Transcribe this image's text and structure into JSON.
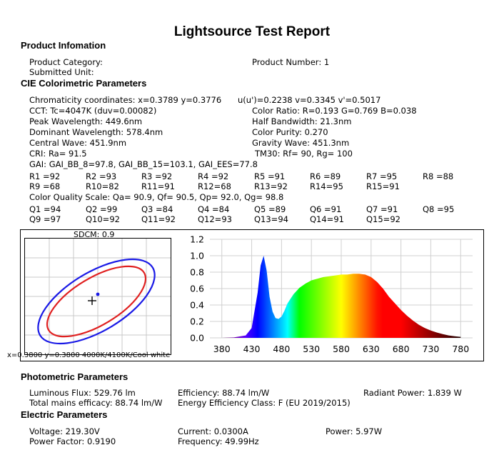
{
  "title": "Lightsource Test Report",
  "product": {
    "heading": "Product Infomation",
    "category": "Product Category:",
    "submitted": "Submitted Unit:",
    "number": "Product Number: 1"
  },
  "cie": {
    "heading": "CIE Colorimetric Parameters",
    "chroma": "Chromaticity coordinates: x=0.3789  y=0.3776",
    "uv": "u(u')=0.2238  v=0.3345  v'=0.5017",
    "cct": "CCT:  Tc=4047K (duv=0.00082)",
    "ratio": "Color Ratio:  R=0.193  G=0.769  B=0.038",
    "peak": "Peak Wavelength: 449.6nm",
    "half": "Half Bandwidth: 21.3nm",
    "dominant": "Dominant Wavelength: 578.4nm",
    "purity": "Color Purity: 0.270",
    "central": "Central Wave: 451.9nm",
    "gravity": "Gravity Wave: 451.3nm",
    "cri": "CRI:  Ra= 91.5",
    "tm30": "TM30: Rf=   90, Rg=  100",
    "gai": "GAI: GAI_BB_8=97.8, GAI_BB_15=103.1, GAI_EES=77.8",
    "r_row1": [
      "R1 =92",
      "R2 =93",
      "R3 =92",
      "R4 =92",
      "R5 =91",
      "R6 =89",
      "R7 =95",
      "R8 =88"
    ],
    "r_row2": [
      "R9 =68",
      "R10=82",
      "R11=91",
      "R12=68",
      "R13=92",
      "R14=95",
      "R15=91"
    ],
    "cqs": "Color Quality Scale: Qa= 90.9, Qf= 90.5, Qp= 92.0, Qg= 98.8",
    "q_row1": [
      "Q1 =94",
      "Q2 =99",
      "Q3 =84",
      "Q4 =84",
      "Q5 =89",
      "Q6 =91",
      "Q7 =91",
      "Q8 =95"
    ],
    "q_row2": [
      "Q9 =97",
      "Q10=92",
      "Q11=92",
      "Q12=93",
      "Q13=94",
      "Q14=91",
      "Q15=92"
    ]
  },
  "cie_plot": {
    "sdcm": "SDCM:   0.9",
    "bottom_label": "x=0.3800  y=0.3800  4000K/4100K/Cool white",
    "ellipse_colors": [
      "#e02020",
      "#1a1ae6"
    ]
  },
  "chart_data": {
    "type": "area",
    "xlabel": "",
    "ylabel": "",
    "xlim": [
      360,
      800
    ],
    "ylim": [
      0,
      1.2
    ],
    "x_ticks": [
      380,
      430,
      480,
      530,
      580,
      630,
      680,
      730,
      780
    ],
    "y_ticks": [
      0.0,
      0.2,
      0.4,
      0.6,
      0.8,
      1.0,
      1.2
    ],
    "x_tick_labels": [
      "380",
      "430",
      "480",
      "530",
      "580",
      "630",
      "680",
      "730",
      "780"
    ],
    "y_tick_labels": [
      "0.0",
      "0.2",
      "0.4",
      "0.6",
      "0.8",
      "1.0",
      "1.2"
    ],
    "grid": true,
    "fill": "visible-spectrum colors",
    "series": [
      {
        "x": [
          380,
          400,
          420,
          430,
          440,
          445,
          450,
          455,
          460,
          465,
          470,
          475,
          480,
          485,
          490,
          500,
          510,
          520,
          530,
          540,
          550,
          560,
          570,
          580,
          590,
          600,
          610,
          620,
          630,
          640,
          650,
          660,
          670,
          680,
          690,
          700,
          710,
          720,
          730,
          740,
          750,
          760,
          770,
          780
        ],
        "y": [
          0.0,
          0.005,
          0.03,
          0.12,
          0.55,
          0.88,
          1.0,
          0.82,
          0.5,
          0.32,
          0.24,
          0.23,
          0.26,
          0.33,
          0.42,
          0.53,
          0.61,
          0.66,
          0.7,
          0.72,
          0.74,
          0.75,
          0.76,
          0.77,
          0.77,
          0.78,
          0.78,
          0.77,
          0.74,
          0.68,
          0.6,
          0.5,
          0.42,
          0.34,
          0.27,
          0.21,
          0.16,
          0.12,
          0.09,
          0.065,
          0.045,
          0.03,
          0.02,
          0.012
        ]
      }
    ]
  },
  "photometric": {
    "heading": "Photometric Parameters",
    "flux": "Luminous Flux: 529.76 lm",
    "efficiency": "Efficiency: 88.74 lm/W",
    "radiant": "Radiant Power: 1.839 W",
    "mains": "Total mains efficacy: 88.74 lm/W",
    "eec": "Energy Efficiency Class: F (EU 2019/2015)"
  },
  "electric": {
    "heading": "Electric Parameters",
    "voltage": "Voltage: 219.30V",
    "current": "Current: 0.0300A",
    "power": "Power: 5.97W",
    "pf": "Power Factor: 0.9190",
    "freq": "Frequency: 49.99Hz"
  }
}
